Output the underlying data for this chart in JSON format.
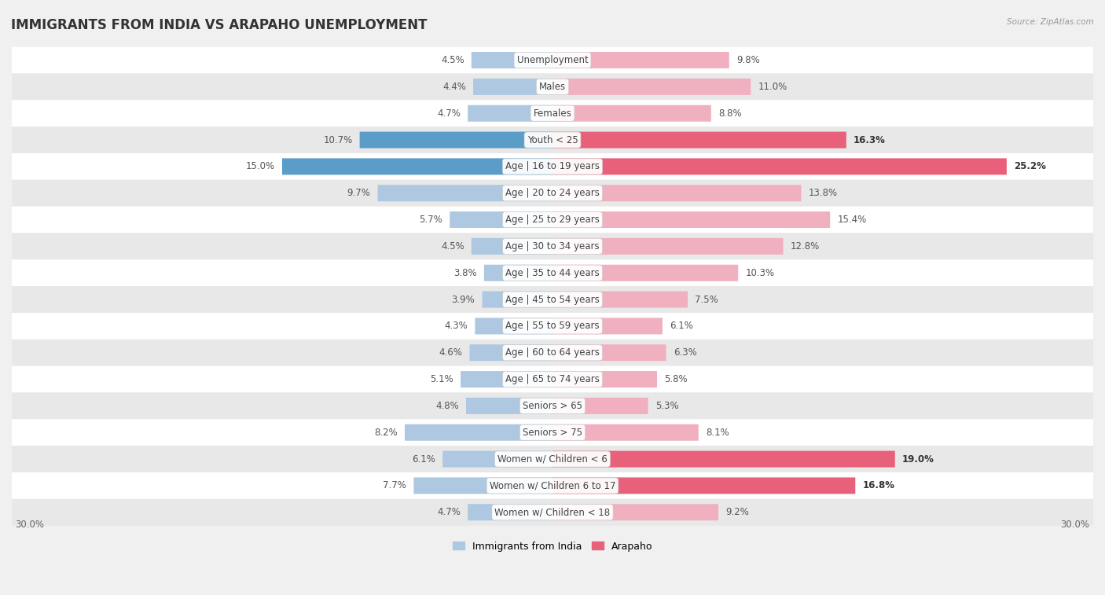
{
  "title": "IMMIGRANTS FROM INDIA VS ARAPAHO UNEMPLOYMENT",
  "source": "Source: ZipAtlas.com",
  "categories": [
    "Unemployment",
    "Males",
    "Females",
    "Youth < 25",
    "Age | 16 to 19 years",
    "Age | 20 to 24 years",
    "Age | 25 to 29 years",
    "Age | 30 to 34 years",
    "Age | 35 to 44 years",
    "Age | 45 to 54 years",
    "Age | 55 to 59 years",
    "Age | 60 to 64 years",
    "Age | 65 to 74 years",
    "Seniors > 65",
    "Seniors > 75",
    "Women w/ Children < 6",
    "Women w/ Children 6 to 17",
    "Women w/ Children < 18"
  ],
  "india_values": [
    4.5,
    4.4,
    4.7,
    10.7,
    15.0,
    9.7,
    5.7,
    4.5,
    3.8,
    3.9,
    4.3,
    4.6,
    5.1,
    4.8,
    8.2,
    6.1,
    7.7,
    4.7
  ],
  "arapaho_values": [
    9.8,
    11.0,
    8.8,
    16.3,
    25.2,
    13.8,
    15.4,
    12.8,
    10.3,
    7.5,
    6.1,
    6.3,
    5.8,
    5.3,
    8.1,
    19.0,
    16.8,
    9.2
  ],
  "india_color_light": "#adc8e0",
  "india_color_dark": "#5b9dc9",
  "arapaho_color_light": "#f0b0c0",
  "arapaho_color_dark": "#e8607a",
  "xlim": 30.0,
  "background_color": "#f0f0f0",
  "row_color_odd": "#ffffff",
  "row_color_even": "#e8e8e8",
  "title_fontsize": 12,
  "cat_fontsize": 8.5,
  "value_fontsize": 8.5,
  "legend_label_india": "Immigrants from India",
  "legend_label_arapaho": "Arapaho"
}
